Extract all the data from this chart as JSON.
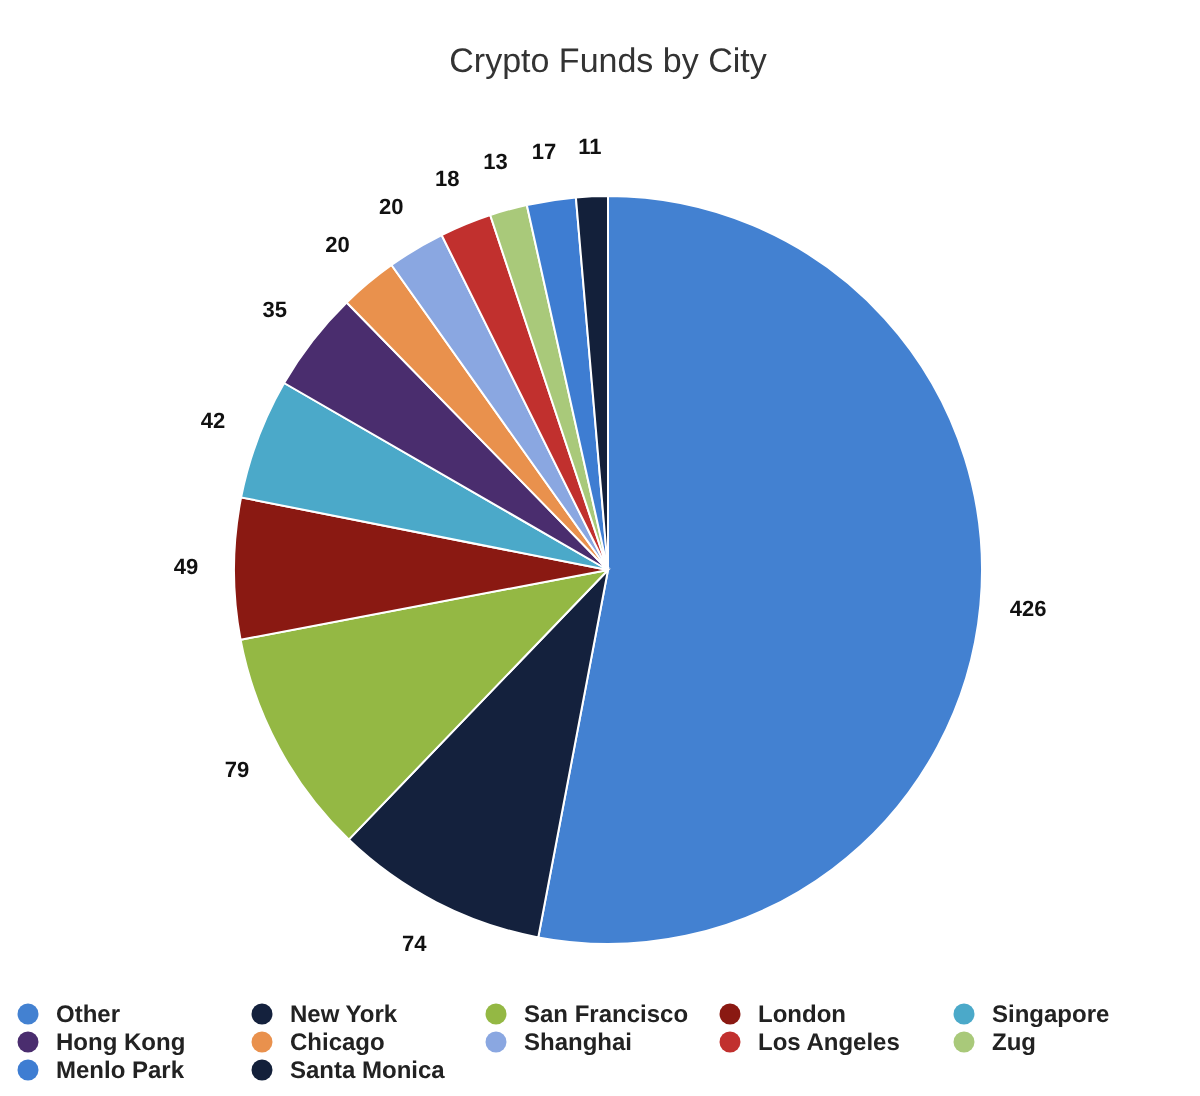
{
  "chart_data": {
    "type": "pie",
    "title": "Crypto Funds by City",
    "categories": [
      "Other",
      "New York",
      "San Francisco",
      "London",
      "Singapore",
      "Hong Kong",
      "Chicago",
      "Shanghai",
      "Los Angeles",
      "Zug",
      "Menlo Park",
      "Santa Monica"
    ],
    "values": [
      426,
      74,
      79,
      49,
      42,
      35,
      20,
      20,
      18,
      13,
      17,
      11
    ],
    "colors": [
      "#4381d1",
      "#14213d",
      "#94b844",
      "#8a1912",
      "#4ba9c9",
      "#4a2d6e",
      "#e9914d",
      "#8aa7e1",
      "#c1302e",
      "#a9c97a",
      "#3e7dd2",
      "#13203a"
    ],
    "data_labels": true,
    "legend": "bottom"
  }
}
